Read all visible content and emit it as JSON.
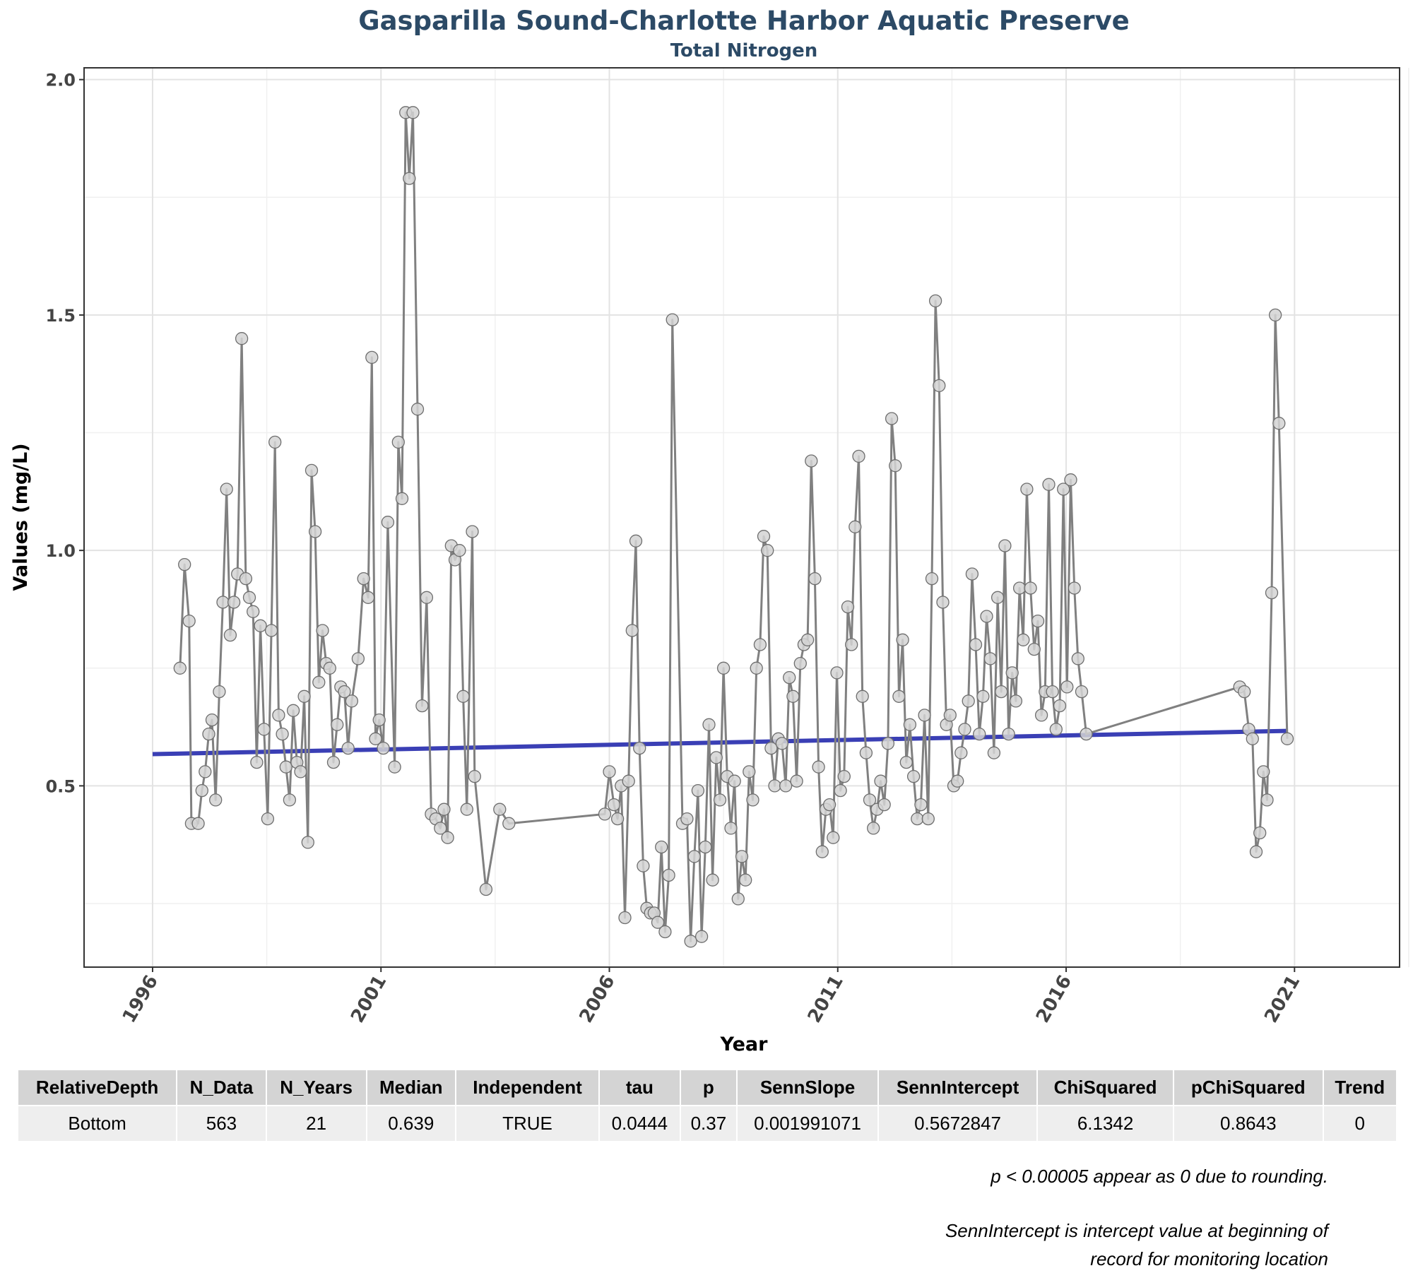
{
  "title": "Gasparilla Sound-Charlotte Harbor Aquatic Preserve",
  "subtitle": "Total Nitrogen",
  "chart_data": {
    "type": "line",
    "xlabel": "Year",
    "ylabel": "Values (mg/L)",
    "xlim": [
      1994.5,
      2023.3
    ],
    "ylim": [
      0.115,
      2.025
    ],
    "x_ticks": [
      1996,
      2001,
      2006,
      2011,
      2016,
      2021
    ],
    "y_ticks": [
      0.5,
      1.0,
      1.5,
      2.0
    ],
    "y_tick_labels": [
      "0.5",
      "1.0",
      "1.5",
      "2.0"
    ],
    "grid": true,
    "colors": {
      "series": "#808080",
      "points": "#d3d3d3",
      "trend": "#3a3fb5",
      "title": "#2c4a66"
    },
    "series": [
      {
        "points": [
          [
            1996.6,
            0.75
          ],
          [
            1996.7,
            0.97
          ],
          [
            1996.8,
            0.85
          ],
          [
            1996.85,
            0.42
          ],
          [
            1997.0,
            0.42
          ],
          [
            1997.08,
            0.49
          ],
          [
            1997.15,
            0.53
          ],
          [
            1997.23,
            0.61
          ],
          [
            1997.3,
            0.64
          ],
          [
            1997.38,
            0.47
          ],
          [
            1997.46,
            0.7
          ],
          [
            1997.54,
            0.89
          ],
          [
            1997.62,
            1.13
          ],
          [
            1997.7,
            0.82
          ],
          [
            1997.78,
            0.89
          ],
          [
            1997.86,
            0.95
          ],
          [
            1997.95,
            1.45
          ],
          [
            1998.04,
            0.94
          ],
          [
            1998.12,
            0.9
          ],
          [
            1998.2,
            0.87
          ],
          [
            1998.28,
            0.55
          ],
          [
            1998.36,
            0.84
          ],
          [
            1998.44,
            0.62
          ],
          [
            1998.52,
            0.43
          ],
          [
            1998.6,
            0.83
          ],
          [
            1998.68,
            1.23
          ],
          [
            1998.76,
            0.65
          ],
          [
            1998.84,
            0.61
          ],
          [
            1998.92,
            0.54
          ],
          [
            1999.0,
            0.47
          ],
          [
            1999.08,
            0.66
          ],
          [
            1999.16,
            0.55
          ],
          [
            1999.24,
            0.53
          ],
          [
            1999.32,
            0.69
          ],
          [
            1999.4,
            0.38
          ],
          [
            1999.48,
            1.17
          ],
          [
            1999.56,
            1.04
          ],
          [
            1999.64,
            0.72
          ],
          [
            1999.72,
            0.83
          ],
          [
            1999.8,
            0.76
          ],
          [
            1999.88,
            0.75
          ],
          [
            1999.96,
            0.55
          ],
          [
            2000.04,
            0.63
          ],
          [
            2000.12,
            0.71
          ],
          [
            2000.2,
            0.7
          ],
          [
            2000.28,
            0.58
          ],
          [
            2000.36,
            0.68
          ],
          [
            2000.5,
            0.77
          ],
          [
            2000.62,
            0.94
          ],
          [
            2000.72,
            0.9
          ],
          [
            2000.8,
            1.41
          ],
          [
            2000.88,
            0.6
          ],
          [
            2000.96,
            0.64
          ],
          [
            2001.05,
            0.58
          ],
          [
            2001.15,
            1.06
          ],
          [
            2001.3,
            0.54
          ],
          [
            2001.38,
            1.23
          ],
          [
            2001.46,
            1.11
          ],
          [
            2001.54,
            1.93
          ],
          [
            2001.62,
            1.79
          ],
          [
            2001.7,
            1.93
          ],
          [
            2001.8,
            1.3
          ],
          [
            2001.9,
            0.67
          ],
          [
            2002.0,
            0.9
          ],
          [
            2002.1,
            0.44
          ],
          [
            2002.2,
            0.43
          ],
          [
            2002.3,
            0.41
          ],
          [
            2002.38,
            0.45
          ],
          [
            2002.46,
            0.39
          ],
          [
            2002.54,
            1.01
          ],
          [
            2002.62,
            0.98
          ],
          [
            2002.72,
            1.0
          ],
          [
            2002.8,
            0.69
          ],
          [
            2002.88,
            0.45
          ],
          [
            2003.0,
            1.04
          ],
          [
            2003.05,
            0.52
          ],
          [
            2003.3,
            0.28
          ],
          [
            2003.6,
            0.45
          ],
          [
            2003.8,
            0.42
          ],
          [
            2005.9,
            0.44
          ],
          [
            2006.0,
            0.53
          ],
          [
            2006.1,
            0.46
          ],
          [
            2006.18,
            0.43
          ],
          [
            2006.26,
            0.5
          ],
          [
            2006.34,
            0.22
          ],
          [
            2006.42,
            0.51
          ],
          [
            2006.5,
            0.83
          ],
          [
            2006.58,
            1.02
          ],
          [
            2006.66,
            0.58
          ],
          [
            2006.74,
            0.33
          ],
          [
            2006.82,
            0.24
          ],
          [
            2006.9,
            0.23
          ],
          [
            2006.98,
            0.23
          ],
          [
            2007.06,
            0.21
          ],
          [
            2007.14,
            0.37
          ],
          [
            2007.22,
            0.19
          ],
          [
            2007.3,
            0.31
          ],
          [
            2007.38,
            1.49
          ],
          [
            2007.6,
            0.42
          ],
          [
            2007.7,
            0.43
          ],
          [
            2007.78,
            0.17
          ],
          [
            2007.86,
            0.35
          ],
          [
            2007.94,
            0.49
          ],
          [
            2008.02,
            0.18
          ],
          [
            2008.1,
            0.37
          ],
          [
            2008.18,
            0.63
          ],
          [
            2008.26,
            0.3
          ],
          [
            2008.34,
            0.56
          ],
          [
            2008.42,
            0.47
          ],
          [
            2008.5,
            0.75
          ],
          [
            2008.58,
            0.52
          ],
          [
            2008.66,
            0.41
          ],
          [
            2008.74,
            0.51
          ],
          [
            2008.82,
            0.26
          ],
          [
            2008.9,
            0.35
          ],
          [
            2008.98,
            0.3
          ],
          [
            2009.06,
            0.53
          ],
          [
            2009.14,
            0.47
          ],
          [
            2009.22,
            0.75
          ],
          [
            2009.3,
            0.8
          ],
          [
            2009.38,
            1.03
          ],
          [
            2009.46,
            1.0
          ],
          [
            2009.54,
            0.58
          ],
          [
            2009.62,
            0.5
          ],
          [
            2009.7,
            0.6
          ],
          [
            2009.78,
            0.59
          ],
          [
            2009.86,
            0.5
          ],
          [
            2009.94,
            0.73
          ],
          [
            2010.02,
            0.69
          ],
          [
            2010.1,
            0.51
          ],
          [
            2010.18,
            0.76
          ],
          [
            2010.26,
            0.8
          ],
          [
            2010.34,
            0.81
          ],
          [
            2010.42,
            1.19
          ],
          [
            2010.5,
            0.94
          ],
          [
            2010.58,
            0.54
          ],
          [
            2010.66,
            0.36
          ],
          [
            2010.74,
            0.45
          ],
          [
            2010.82,
            0.46
          ],
          [
            2010.9,
            0.39
          ],
          [
            2010.98,
            0.74
          ],
          [
            2011.06,
            0.49
          ],
          [
            2011.14,
            0.52
          ],
          [
            2011.22,
            0.88
          ],
          [
            2011.3,
            0.8
          ],
          [
            2011.38,
            1.05
          ],
          [
            2011.46,
            1.2
          ],
          [
            2011.54,
            0.69
          ],
          [
            2011.62,
            0.57
          ],
          [
            2011.7,
            0.47
          ],
          [
            2011.78,
            0.41
          ],
          [
            2011.86,
            0.45
          ],
          [
            2011.94,
            0.51
          ],
          [
            2012.02,
            0.46
          ],
          [
            2012.1,
            0.59
          ],
          [
            2012.18,
            1.28
          ],
          [
            2012.26,
            1.18
          ],
          [
            2012.34,
            0.69
          ],
          [
            2012.42,
            0.81
          ],
          [
            2012.5,
            0.55
          ],
          [
            2012.58,
            0.63
          ],
          [
            2012.66,
            0.52
          ],
          [
            2012.74,
            0.43
          ],
          [
            2012.82,
            0.46
          ],
          [
            2012.9,
            0.65
          ],
          [
            2012.98,
            0.43
          ],
          [
            2013.06,
            0.94
          ],
          [
            2013.14,
            1.53
          ],
          [
            2013.22,
            1.35
          ],
          [
            2013.3,
            0.89
          ],
          [
            2013.38,
            0.63
          ],
          [
            2013.46,
            0.65
          ],
          [
            2013.54,
            0.5
          ],
          [
            2013.62,
            0.51
          ],
          [
            2013.7,
            0.57
          ],
          [
            2013.78,
            0.62
          ],
          [
            2013.86,
            0.68
          ],
          [
            2013.94,
            0.95
          ],
          [
            2014.02,
            0.8
          ],
          [
            2014.1,
            0.61
          ],
          [
            2014.18,
            0.69
          ],
          [
            2014.26,
            0.86
          ],
          [
            2014.34,
            0.77
          ],
          [
            2014.42,
            0.57
          ],
          [
            2014.5,
            0.9
          ],
          [
            2014.58,
            0.7
          ],
          [
            2014.66,
            1.01
          ],
          [
            2014.74,
            0.61
          ],
          [
            2014.82,
            0.74
          ],
          [
            2014.9,
            0.68
          ],
          [
            2014.98,
            0.92
          ],
          [
            2015.06,
            0.81
          ],
          [
            2015.14,
            1.13
          ],
          [
            2015.22,
            0.92
          ],
          [
            2015.3,
            0.79
          ],
          [
            2015.38,
            0.85
          ],
          [
            2015.46,
            0.65
          ],
          [
            2015.54,
            0.7
          ],
          [
            2015.62,
            1.14
          ],
          [
            2015.7,
            0.7
          ],
          [
            2015.78,
            0.62
          ],
          [
            2015.86,
            0.67
          ],
          [
            2015.94,
            1.13
          ],
          [
            2016.02,
            0.71
          ],
          [
            2016.1,
            1.15
          ],
          [
            2016.18,
            0.92
          ],
          [
            2016.26,
            0.77
          ],
          [
            2016.34,
            0.7
          ],
          [
            2016.44,
            0.61
          ],
          [
            2019.8,
            0.71
          ],
          [
            2019.9,
            0.7
          ],
          [
            2020.0,
            0.62
          ],
          [
            2020.08,
            0.6
          ],
          [
            2020.16,
            0.36
          ],
          [
            2020.24,
            0.4
          ],
          [
            2020.32,
            0.53
          ],
          [
            2020.4,
            0.47
          ],
          [
            2020.5,
            0.91
          ],
          [
            2020.58,
            1.5
          ],
          [
            2020.66,
            1.27
          ],
          [
            2020.84,
            0.6
          ]
        ]
      }
    ],
    "trend_line": {
      "x": [
        1996.0,
        2020.84
      ],
      "y": [
        0.5672847,
        0.6167
      ]
    }
  },
  "table": {
    "headers": [
      "RelativeDepth",
      "N_Data",
      "N_Years",
      "Median",
      "Independent",
      "tau",
      "p",
      "SennSlope",
      "SennIntercept",
      "ChiSquared",
      "pChiSquared",
      "Trend"
    ],
    "rows": [
      [
        "Bottom",
        "563",
        "21",
        "0.639",
        "TRUE",
        "0.0444",
        "0.37",
        "0.001991071",
        "0.5672847",
        "6.1342",
        "0.8643",
        "0"
      ]
    ]
  },
  "footnotes": {
    "rounding": "p < 0.00005 appear as 0 due to rounding.",
    "intercept_line1": "SennIntercept is intercept value at beginning of",
    "intercept_line2": "record for monitoring location"
  }
}
